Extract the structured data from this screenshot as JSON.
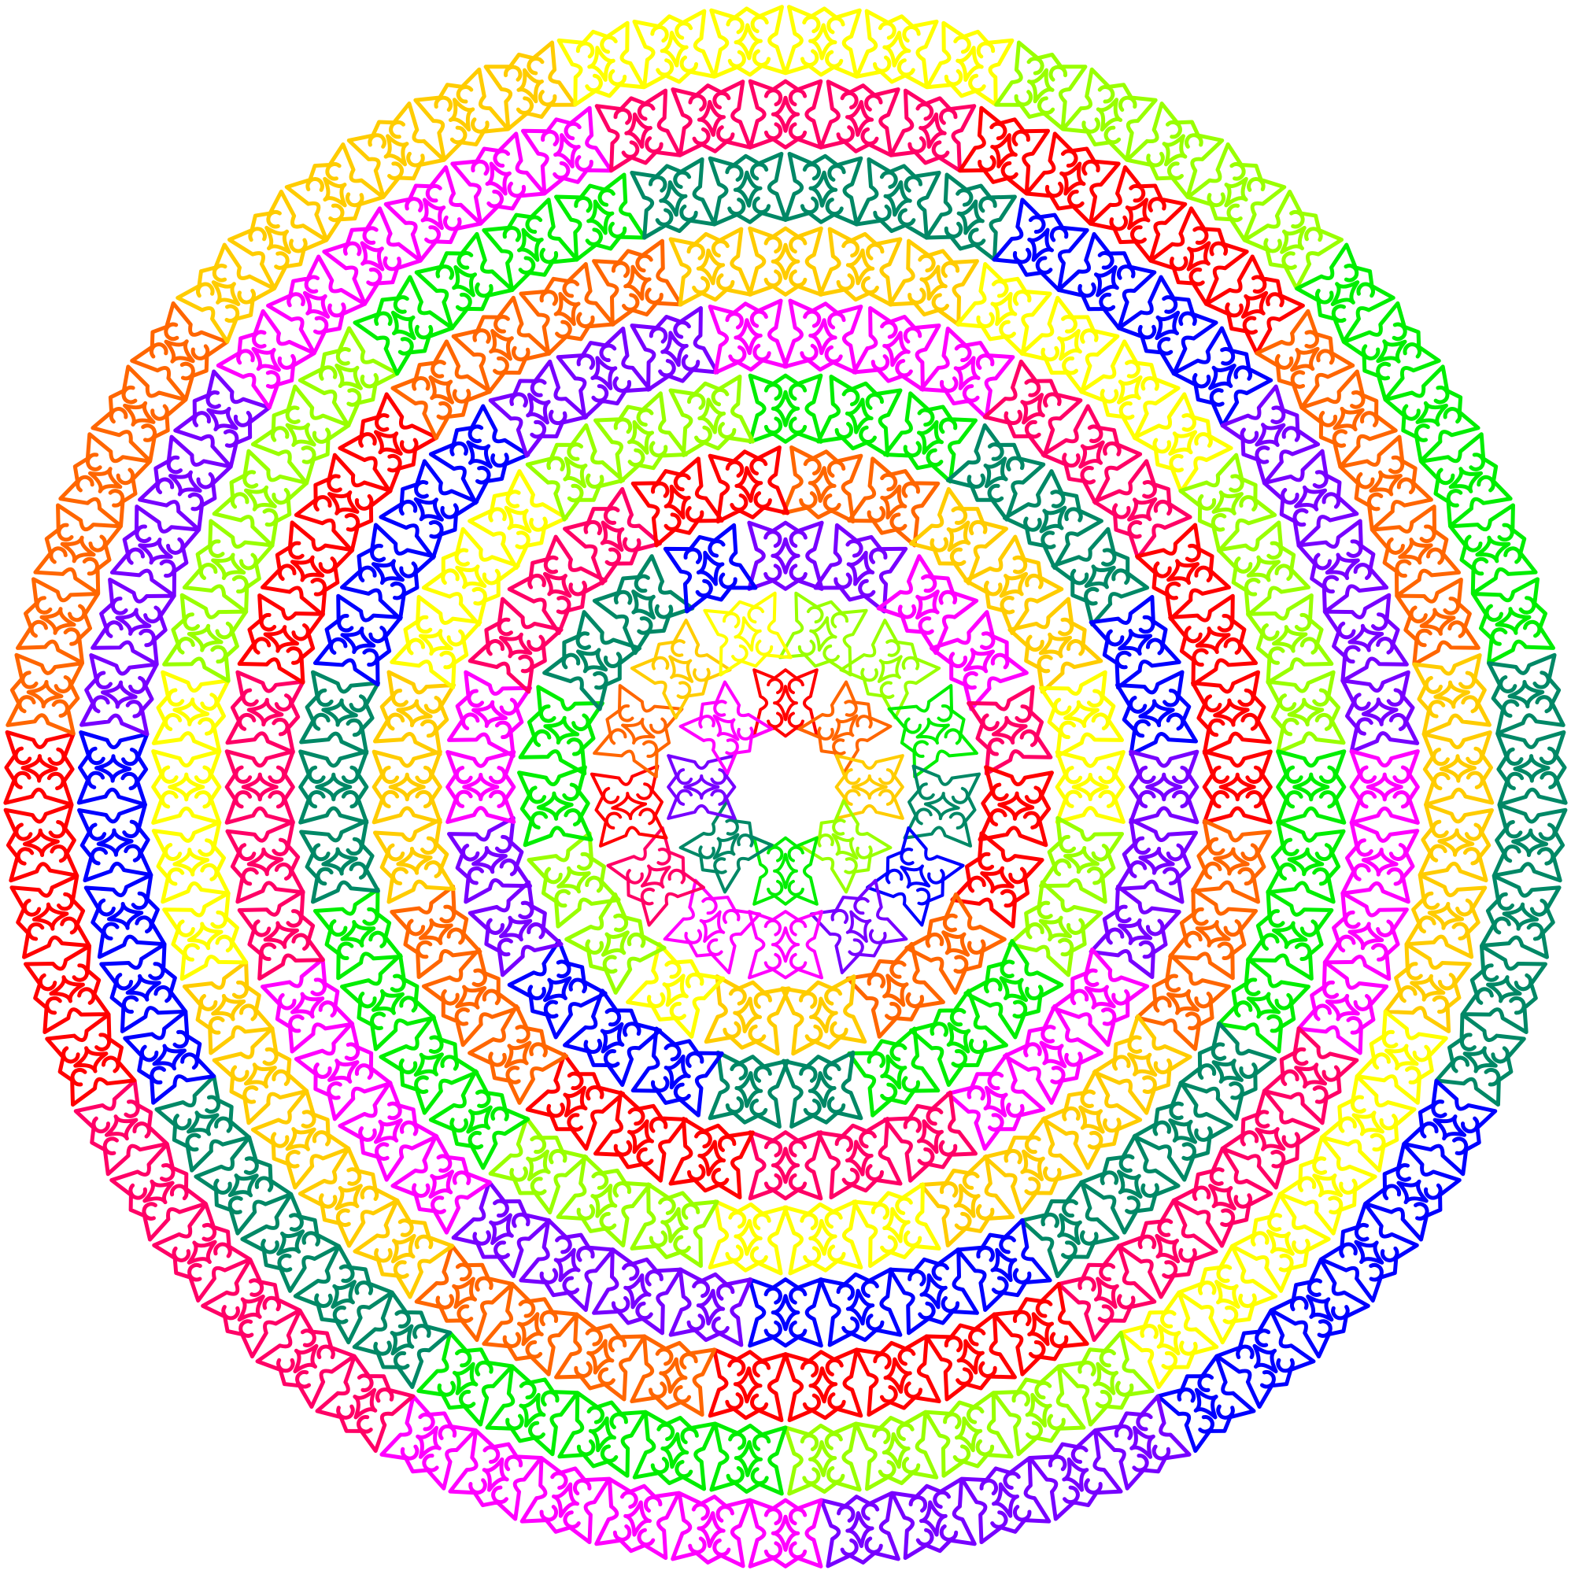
{
  "artwork": {
    "background": "#ffffff",
    "palette": [
      "#ff0000",
      "#ff6600",
      "#ffcc00",
      "#ffff00",
      "#99ff00",
      "#00ee00",
      "#008866",
      "#0000ff",
      "#7700ff",
      "#ff00ff",
      "#ff0066"
    ],
    "style": "concentric rainbow rings of curled ornamental motifs"
  }
}
